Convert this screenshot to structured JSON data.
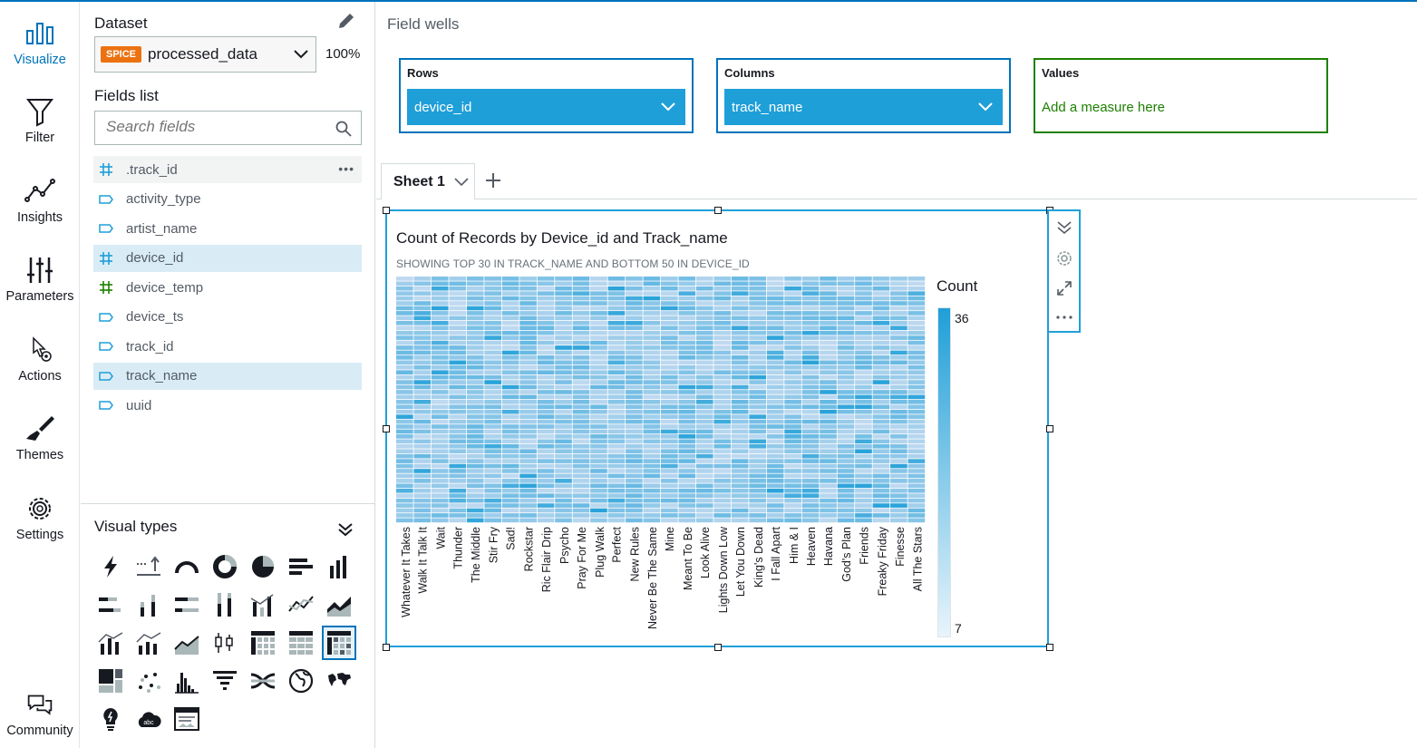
{
  "nav": {
    "items": [
      {
        "label": "Visualize",
        "icon": "bar-chart-icon",
        "active": true
      },
      {
        "label": "Filter",
        "icon": "funnel-icon"
      },
      {
        "label": "Insights",
        "icon": "line-nodes-icon"
      },
      {
        "label": "Parameters",
        "icon": "sliders-icon"
      },
      {
        "label": "Actions",
        "icon": "pointer-gear-icon"
      },
      {
        "label": "Themes",
        "icon": "brush-icon"
      },
      {
        "label": "Settings",
        "icon": "gear-icon"
      }
    ],
    "community": "Community"
  },
  "dataset": {
    "title": "Dataset",
    "badge": "SPICE",
    "name": "processed_data",
    "percent": "100%"
  },
  "fields_list": {
    "title": "Fields list",
    "search_placeholder": "Search fields",
    "fields": [
      {
        "name": ".track_id",
        "type": "number"
      },
      {
        "name": "activity_type",
        "type": "string"
      },
      {
        "name": "artist_name",
        "type": "string"
      },
      {
        "name": "device_id",
        "type": "number",
        "selected": true
      },
      {
        "name": "device_temp",
        "type": "number-green"
      },
      {
        "name": "device_ts",
        "type": "string"
      },
      {
        "name": "track_id",
        "type": "string"
      },
      {
        "name": "track_name",
        "type": "string",
        "selected": true
      },
      {
        "name": "uuid",
        "type": "string"
      }
    ]
  },
  "visual_types": {
    "title": "Visual types"
  },
  "field_wells": {
    "title": "Field wells",
    "rows": {
      "label": "Rows",
      "value": "device_id"
    },
    "columns": {
      "label": "Columns",
      "value": "track_name"
    },
    "values": {
      "label": "Values",
      "hint": "Add a measure here"
    }
  },
  "sheet": {
    "tab": "Sheet 1"
  },
  "visual": {
    "title": "Count of Records by Device_id and Track_name",
    "subtitle": "SHOWING TOP 30 IN TRACK_NAME AND BOTTOM 50 IN DEVICE_ID",
    "legend_title": "Count",
    "legend_max": "36",
    "legend_min": "7"
  },
  "colors": {
    "accent": "#0073bb",
    "cell": "#1f9fd8",
    "values_green": "#1d8102",
    "spice": "#ec7211"
  },
  "chart_data": {
    "type": "heatmap",
    "title": "Count of Records by Device_id and Track_name",
    "subtitle": "SHOWING TOP 30 IN TRACK_NAME AND BOTTOM 50 IN DEVICE_ID",
    "x_categories": [
      "Whatever It Takes",
      "Walk It Talk It",
      "Wait",
      "Thunder",
      "The Middle",
      "Stir Fry",
      "Sad!",
      "Rockstar",
      "Ric Flair Drip",
      "Psycho",
      "Pray For Me",
      "Plug Walk",
      "Perfect",
      "New Rules",
      "Never Be The Same",
      "Mine",
      "Meant To Be",
      "Look Alive",
      "Lights Down Low",
      "Let You Down",
      "King's Dead",
      "I Fall Apart",
      "Him & I",
      "Heaven",
      "Havana",
      "God's Plan",
      "Friends",
      "Freaky Friday",
      "Finesse",
      "All The Stars"
    ],
    "rows": 50,
    "legend": {
      "title": "Count",
      "min": 7,
      "max": 36
    }
  }
}
